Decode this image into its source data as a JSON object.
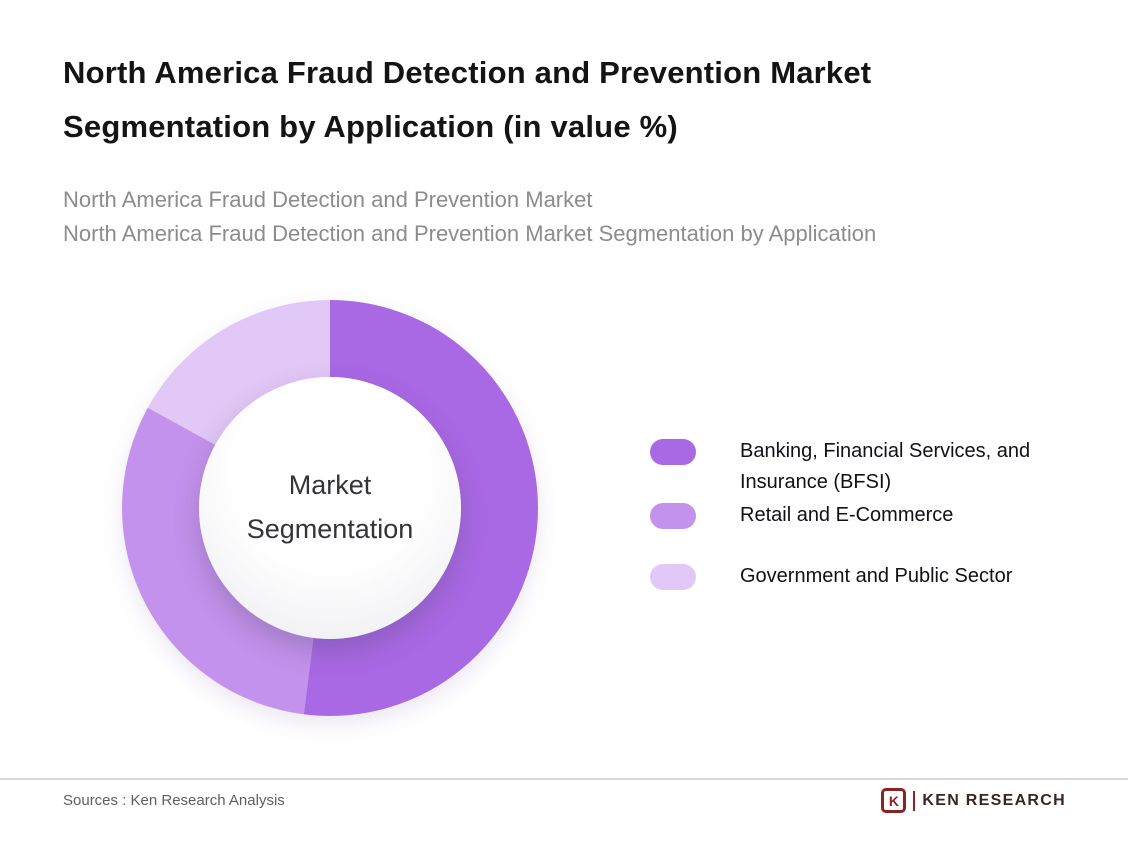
{
  "header": {
    "title_lines": [
      "North America Fraud Detection and Prevention Market",
      "Segmentation by Application (in value %)"
    ],
    "subtitle_lines": [
      "North America Fraud Detection and Prevention Market",
      "North America Fraud Detection and Prevention Market Segmentation by Application"
    ]
  },
  "chart_data": {
    "type": "pie",
    "variant": "donut",
    "title": "North America Fraud Detection and Prevention Market Segmentation by Application (in value %)",
    "center_label": "Market Segmentation",
    "categories": [
      "Banking, Financial Services, and Insurance (BFSI)",
      "Retail and E-Commerce",
      "Government and Public Sector"
    ],
    "values": [
      52,
      31,
      17
    ],
    "unit": "%",
    "colors": [
      "#a968e4",
      "#c392ec",
      "#e1c8f6"
    ],
    "start_angle_deg": 0,
    "legend_position": "right"
  },
  "legend": {
    "items": [
      {
        "label": "Banking, Financial Services, and Insurance (BFSI)",
        "color": "#a968e4"
      },
      {
        "label": "Retail and E-Commerce",
        "color": "#c392ec"
      },
      {
        "label": "Government and Public Sector",
        "color": "#e1c8f6"
      }
    ]
  },
  "footer": {
    "sources": "Sources : Ken Research Analysis",
    "logo": {
      "mark": "K",
      "text": "KEN RESEARCH"
    }
  }
}
